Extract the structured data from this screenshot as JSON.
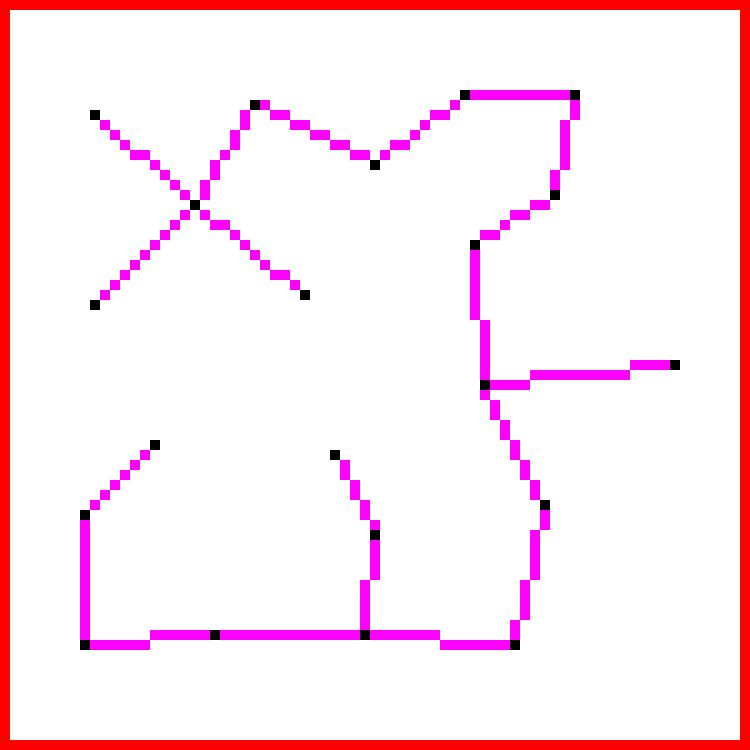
{
  "colors": {
    "frame": "#ff0000",
    "background": "#ffffff",
    "line": "#ff00ff",
    "node": "#000000"
  },
  "nodes": [
    {
      "id": "n1",
      "col": 9,
      "row": 11
    },
    {
      "id": "n2",
      "col": 19,
      "row": 20
    },
    {
      "id": "n3",
      "col": 30,
      "row": 29
    },
    {
      "id": "n4",
      "col": 9,
      "row": 30
    },
    {
      "id": "n5",
      "col": 25,
      "row": 10
    },
    {
      "id": "n6",
      "col": 37,
      "row": 16
    },
    {
      "id": "n7",
      "col": 46,
      "row": 9
    },
    {
      "id": "n8",
      "col": 57,
      "row": 9
    },
    {
      "id": "n9",
      "col": 55,
      "row": 19
    },
    {
      "id": "n10",
      "col": 47,
      "row": 24
    },
    {
      "id": "n11",
      "col": 48,
      "row": 38
    },
    {
      "id": "n12",
      "col": 67,
      "row": 36
    },
    {
      "id": "n13",
      "col": 54,
      "row": 50
    },
    {
      "id": "n14",
      "col": 51,
      "row": 64
    },
    {
      "id": "n15",
      "col": 36,
      "row": 63
    },
    {
      "id": "n16",
      "col": 37,
      "row": 53
    },
    {
      "id": "n17",
      "col": 33,
      "row": 45
    },
    {
      "id": "n18",
      "col": 21,
      "row": 63
    },
    {
      "id": "n19",
      "col": 8,
      "row": 64
    },
    {
      "id": "n20",
      "col": 8,
      "row": 51
    },
    {
      "id": "n21",
      "col": 15,
      "row": 44
    }
  ],
  "edges": [
    [
      "n1",
      "n2"
    ],
    [
      "n2",
      "n3"
    ],
    [
      "n4",
      "n2"
    ],
    [
      "n2",
      "n5"
    ],
    [
      "n5",
      "n6"
    ],
    [
      "n6",
      "n7"
    ],
    [
      "n7",
      "n8"
    ],
    [
      "n8",
      "n9"
    ],
    [
      "n9",
      "n10"
    ],
    [
      "n10",
      "n11"
    ],
    [
      "n11",
      "n12"
    ],
    [
      "n11",
      "n13"
    ],
    [
      "n13",
      "n14"
    ],
    [
      "n14",
      "n15"
    ],
    [
      "n15",
      "n16"
    ],
    [
      "n16",
      "n17"
    ],
    [
      "n15",
      "n18"
    ],
    [
      "n18",
      "n19"
    ],
    [
      "n19",
      "n20"
    ],
    [
      "n20",
      "n21"
    ]
  ]
}
